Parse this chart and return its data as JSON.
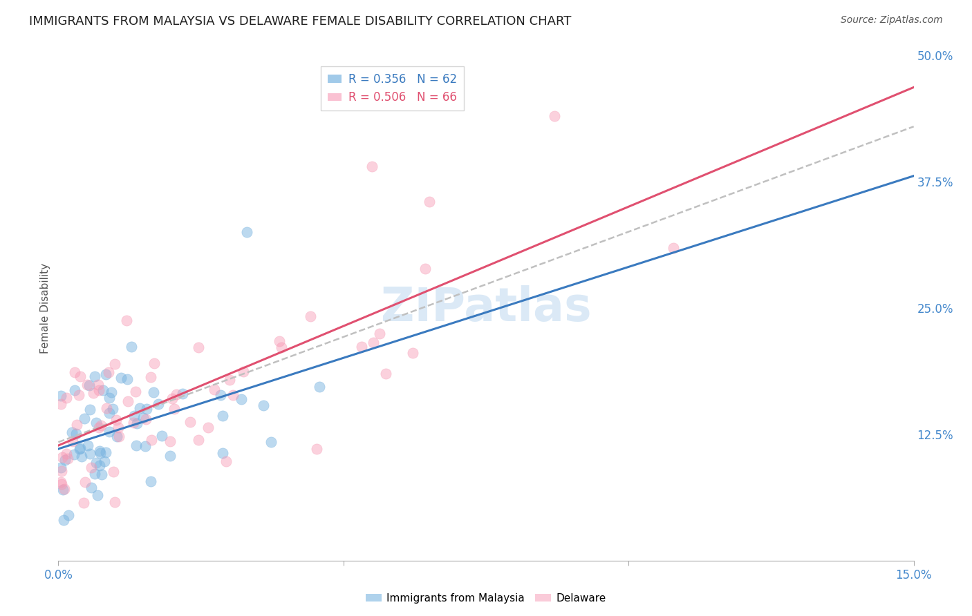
{
  "title": "IMMIGRANTS FROM MALAYSIA VS DELAWARE FEMALE DISABILITY CORRELATION CHART",
  "source": "Source: ZipAtlas.com",
  "ylabel": "Female Disability",
  "xlim": [
    0,
    0.15
  ],
  "ylim": [
    0,
    0.5
  ],
  "xtick_positions": [
    0.0,
    0.05,
    0.1,
    0.15
  ],
  "xtick_labels": [
    "0.0%",
    "",
    "",
    "15.0%"
  ],
  "ytick_positions": [
    0.0,
    0.125,
    0.25,
    0.375,
    0.5
  ],
  "ytick_labels_right": [
    "",
    "12.5%",
    "25.0%",
    "37.5%",
    "50.0%"
  ],
  "blue_R": 0.356,
  "blue_N": 62,
  "pink_R": 0.506,
  "pink_N": 66,
  "blue_color": "#7ab4e0",
  "pink_color": "#f799b4",
  "blue_line_color": "#3a7abf",
  "pink_line_color": "#e05070",
  "trend_line_color": "#c0c0c0",
  "watermark": "ZIPatlas",
  "blue_label": "Immigrants from Malaysia",
  "pink_label": "Delaware",
  "background_color": "#ffffff",
  "grid_color": "#d8d8d8",
  "title_fontsize": 13,
  "source_fontsize": 10,
  "legend_fontsize": 12,
  "axis_label_fontsize": 11,
  "blue_intercept": 0.125,
  "blue_slope": 0.95,
  "pink_intercept": 0.158,
  "pink_slope": 1.05,
  "gray_intercept": 0.145,
  "gray_slope": 1.2
}
